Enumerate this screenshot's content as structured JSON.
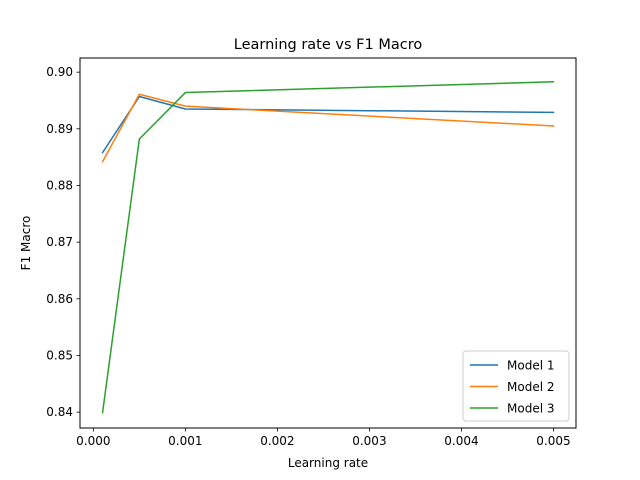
{
  "chart_data": {
    "type": "line",
    "title": "Learning rate vs F1 Macro",
    "xlabel": "Learning rate",
    "ylabel": "F1 Macro",
    "xlim": [
      -0.000145,
      0.005245
    ],
    "ylim": [
      0.8372,
      0.9025
    ],
    "xticks": [
      0,
      0.001,
      0.002,
      0.003,
      0.004,
      0.005
    ],
    "xtick_labels": [
      "0.000",
      "0.001",
      "0.002",
      "0.003",
      "0.004",
      "0.005"
    ],
    "yticks": [
      0.84,
      0.85,
      0.86,
      0.87,
      0.88,
      0.89,
      0.9
    ],
    "ytick_labels": [
      "0.84",
      "0.85",
      "0.86",
      "0.87",
      "0.88",
      "0.89",
      "0.90"
    ],
    "grid": false,
    "legend_position": "bottom-right",
    "x": [
      0.0001,
      0.0005,
      0.001,
      0.005
    ],
    "series": [
      {
        "name": "Model 1",
        "color": "#1f77b4",
        "values": [
          0.8858,
          0.8957,
          0.8935,
          0.8929
        ]
      },
      {
        "name": "Model 2",
        "color": "#ff7f0e",
        "values": [
          0.8842,
          0.8961,
          0.894,
          0.8905
        ]
      },
      {
        "name": "Model 3",
        "color": "#2ca02c",
        "values": [
          0.8399,
          0.8882,
          0.8964,
          0.8983
        ]
      }
    ]
  }
}
